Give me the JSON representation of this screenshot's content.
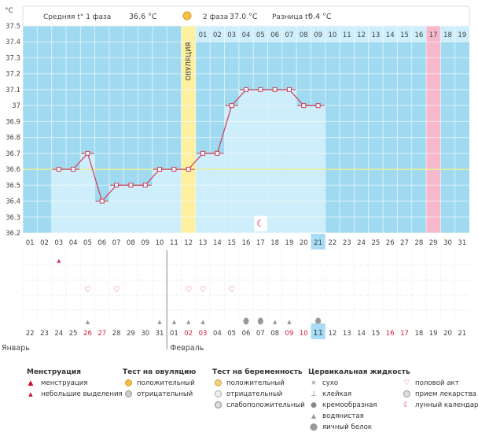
{
  "chart_data": {
    "type": "line",
    "title": "",
    "ylabel": "°C",
    "ylim": [
      36.2,
      37.5
    ],
    "yticks": [
      "37.5",
      "37.4",
      "37.3",
      "37.2",
      "37.1",
      "37",
      "36.9",
      "36.8",
      "36.7",
      "36.6",
      "36.5",
      "36.4",
      "36.3",
      "36.2"
    ],
    "header": {
      "phase1": "Средняя t° 1 фаза",
      "phase1_value": "36.6 °C",
      "phase2": "2 фаза",
      "phase2_value": "37.0 °C",
      "diff": "Разница t°",
      "diff_value": "0.4 °C"
    },
    "ovulation_label": "ОВУЛЯЦИЯ",
    "cycle_days": [
      "01",
      "02",
      "03",
      "04",
      "05",
      "06",
      "07",
      "08",
      "09",
      "10",
      "11",
      "12",
      "13",
      "14",
      "15",
      "16",
      "17",
      "18",
      "19",
      "20",
      "21",
      "22",
      "23",
      "24",
      "25",
      "26",
      "27",
      "28",
      "29",
      "30",
      "31"
    ],
    "post_ovulation_days": [
      "01",
      "02",
      "03",
      "04",
      "05",
      "06",
      "07",
      "08",
      "09",
      "10",
      "11",
      "12",
      "13",
      "14",
      "15",
      "16",
      "17",
      "18",
      "19"
    ],
    "bottom_dates": [
      "22",
      "23",
      "24",
      "25",
      "26",
      "27",
      "28",
      "29",
      "30",
      "31",
      "01",
      "02",
      "03",
      "04",
      "05",
      "06",
      "07",
      "08",
      "09",
      "10",
      "11",
      "12",
      "13",
      "14",
      "15",
      "16",
      "17",
      "18",
      "19",
      "20",
      "21"
    ],
    "months": [
      "Январь",
      "Февраль"
    ],
    "highlight_day": "21",
    "highlight_date": "11",
    "coverline": 36.6,
    "temperatures": [
      null,
      null,
      36.6,
      36.6,
      36.7,
      36.4,
      36.5,
      36.5,
      36.5,
      36.6,
      36.6,
      36.6,
      36.7,
      36.7,
      37.0,
      37.1,
      37.1,
      37.1,
      37.1,
      37.0,
      37.0
    ],
    "menstruation_small_day": 3,
    "sex_days": [
      5,
      7,
      12,
      13,
      15
    ],
    "fluid_watery_days": [
      5,
      10,
      11,
      12,
      13,
      18,
      19
    ],
    "fluid_eggwhite_days": [
      16,
      17,
      21
    ],
    "lunar_day": 17
  },
  "legend": {
    "menstruation": {
      "title": "Менструация",
      "items": [
        "менструация",
        "небольшие выделения"
      ]
    },
    "ovulation_test": {
      "title": "Тест на овуляцию",
      "items": [
        "положительный",
        "отрицательный"
      ]
    },
    "pregnancy_test": {
      "title": "Тест на беременность",
      "items": [
        "положительный",
        "отрицательный",
        "слабоположительный"
      ]
    },
    "cervical_fluid": {
      "title": "Цервикальная жидкость",
      "items": [
        "сухо",
        "клейкая",
        "кремообразная",
        "водянистая",
        "яичный белок"
      ]
    },
    "other": {
      "items": [
        "половой акт",
        "прием лекарства",
        "лунный календарь"
      ]
    }
  },
  "colors": {
    "sky": "#9fdaf0",
    "column": "#cdeefa",
    "line": "#d03a57",
    "ovulation": "#fdf0a0",
    "pink": "#f8b8cb",
    "highlight": "#a8dcf5",
    "red_date": "#d0213f"
  }
}
